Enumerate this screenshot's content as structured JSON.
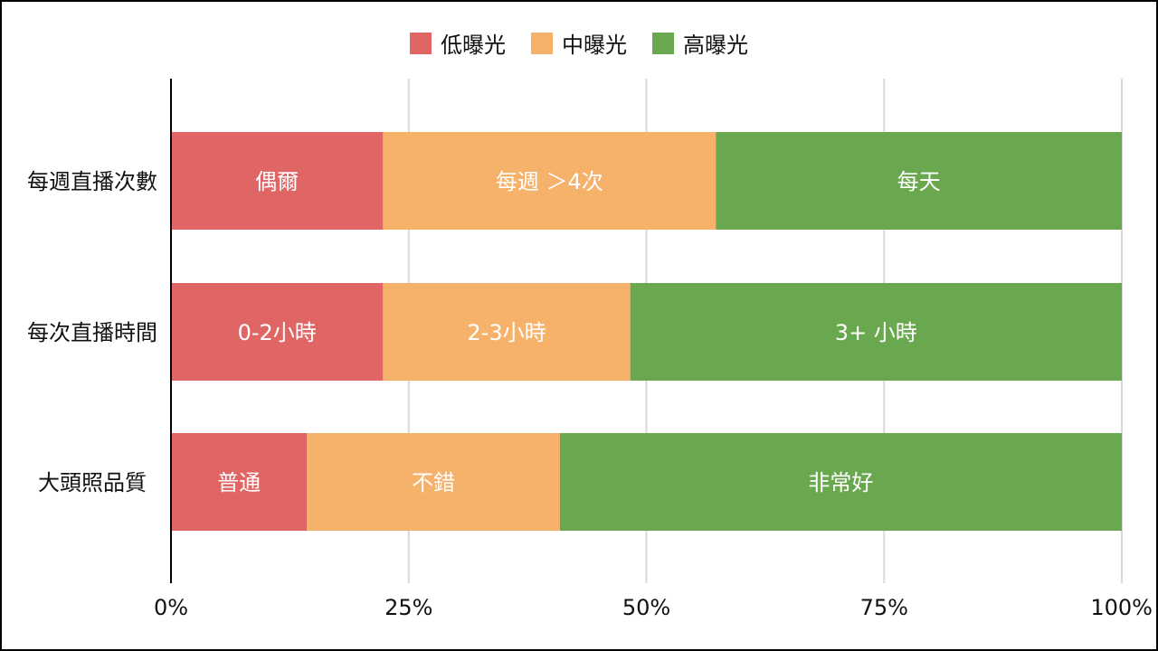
{
  "chart_data": {
    "type": "bar",
    "orientation": "horizontal",
    "stacked": true,
    "categories": [
      "每週直播次數",
      "每次直播時間",
      "大頭照品質"
    ],
    "series": [
      {
        "name": "低曝光",
        "color": "#e06666",
        "values": [
          22.3,
          22.3,
          14.3
        ],
        "labels": [
          "偶爾",
          "0-2小時",
          "普通"
        ]
      },
      {
        "name": "中曝光",
        "color": "#f6b26b",
        "values": [
          35.0,
          26.0,
          26.6
        ],
        "labels": [
          "每週 ＞4次",
          "2-3小時",
          "不錯"
        ]
      },
      {
        "name": "高曝光",
        "color": "#6aa84f",
        "values": [
          42.7,
          51.7,
          59.1
        ],
        "labels": [
          "每天",
          "3+ 小時",
          "非常好"
        ]
      }
    ],
    "x_ticks": [
      "0%",
      "25%",
      "50%",
      "75%",
      "100%"
    ],
    "xlim": [
      0,
      100
    ],
    "grid": true,
    "legend_position": "top-center"
  }
}
